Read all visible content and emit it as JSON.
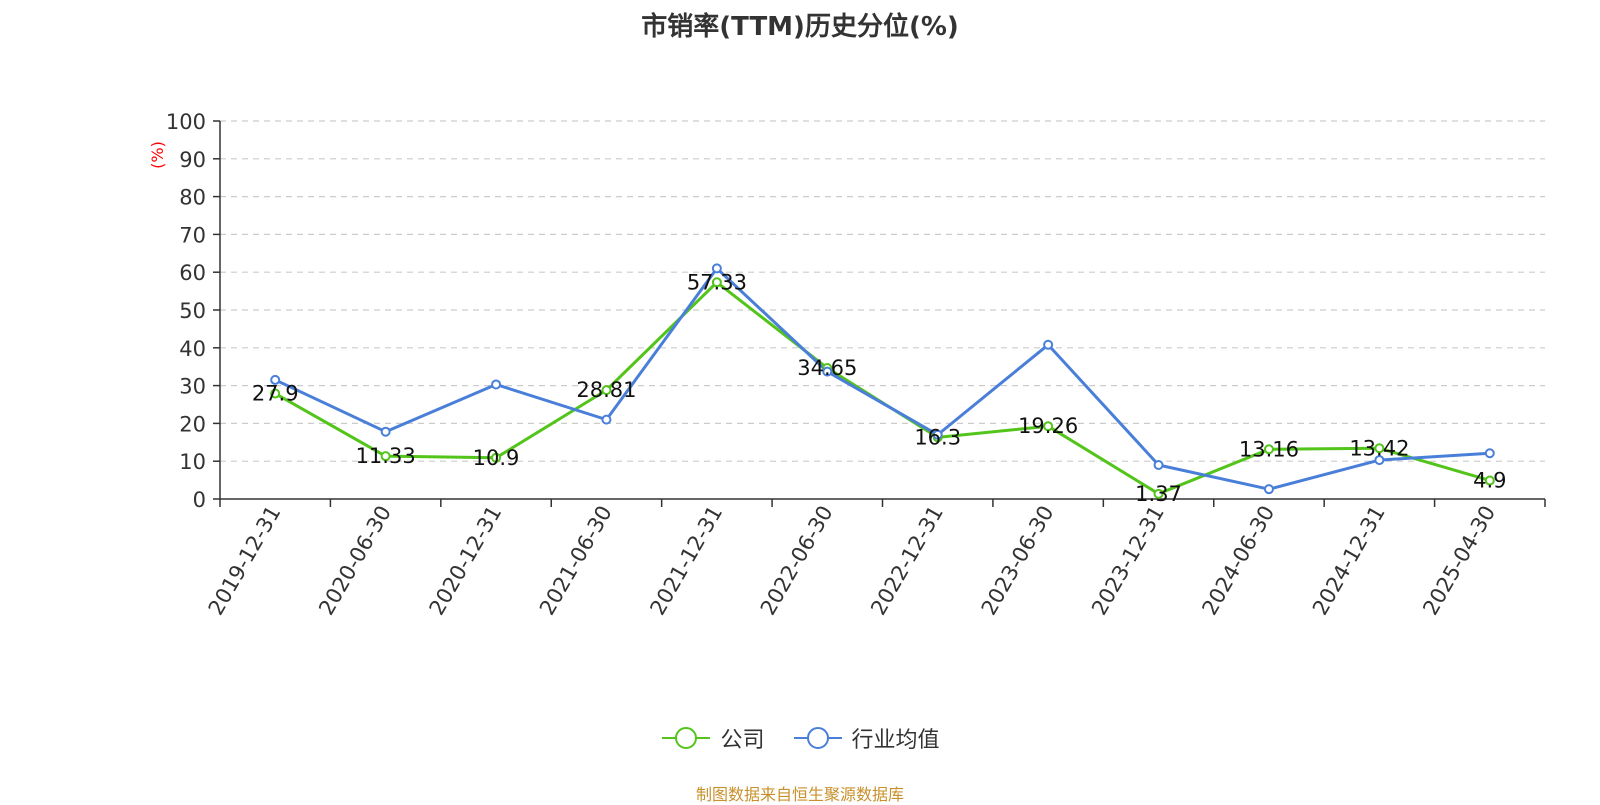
{
  "chart_data": {
    "type": "line",
    "title": "市销率(TTM)历史分位(%)",
    "ylabel": "(%)",
    "ylim": [
      0,
      100
    ],
    "yticks": [
      0,
      10,
      20,
      30,
      40,
      50,
      60,
      70,
      80,
      90,
      100
    ],
    "grid": true,
    "legend_position": "bottom",
    "categories": [
      "2019-12-31",
      "2020-06-30",
      "2020-12-31",
      "2021-06-30",
      "2021-12-31",
      "2022-06-30",
      "2022-12-31",
      "2023-06-30",
      "2023-12-31",
      "2024-06-30",
      "2024-12-31",
      "2025-04-30"
    ],
    "series": [
      {
        "name": "公司",
        "color": "#52c41a",
        "values": [
          27.9,
          11.33,
          10.9,
          28.81,
          57.33,
          34.65,
          16.3,
          19.26,
          1.37,
          13.16,
          13.42,
          4.9
        ],
        "data_labels": [
          "27.9",
          "11.33",
          "10.9",
          "28.81",
          "57.33",
          "34.65",
          "16.3",
          "19.26",
          "1.37",
          "13.16",
          "13.42",
          "4.9"
        ]
      },
      {
        "name": "行业均值",
        "color": "#4a7fd9",
        "values": [
          31.5,
          17.8,
          30.3,
          21.0,
          61.0,
          33.7,
          17.0,
          40.8,
          9.0,
          2.6,
          10.3,
          12.1
        ]
      }
    ]
  },
  "source_text": "制图数据来自恒生聚源数据库"
}
